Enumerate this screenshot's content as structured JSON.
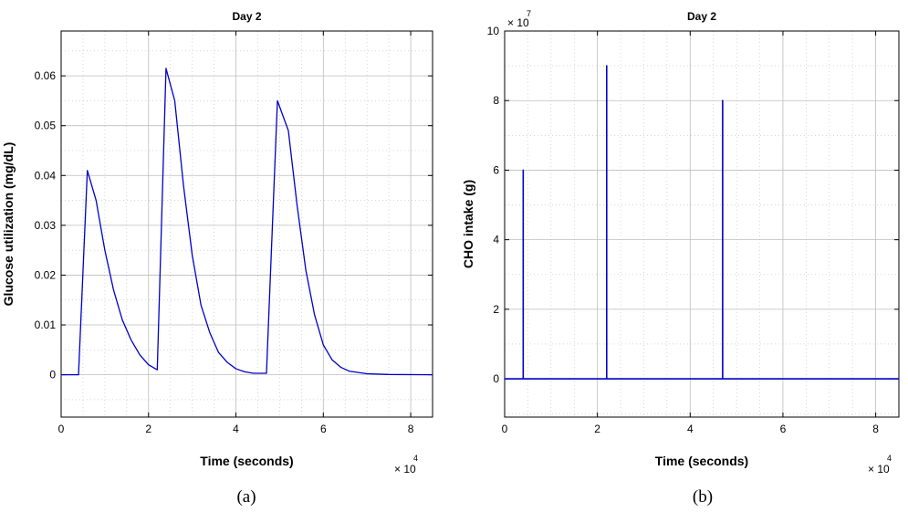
{
  "colors": {
    "series": "#0000c8",
    "grid": "#bdbdbd",
    "axes": "#000000"
  },
  "chart_data": [
    {
      "type": "line",
      "title": "Day 2",
      "xlabel": "Time (seconds)",
      "ylabel": "Glucose utilization (mg/dL)",
      "caption": "(a)",
      "x_multiplier": {
        "base": "× 10",
        "exponent": "4"
      },
      "xlim": [
        0,
        8.5
      ],
      "ylim": [
        -0.0085,
        0.069
      ],
      "xticks": [
        0,
        2,
        4,
        6,
        8
      ],
      "yticks": [
        0,
        0.01,
        0.02,
        0.03,
        0.04,
        0.05,
        0.06
      ],
      "ytick_labels": [
        "0",
        "0.01",
        "0.02",
        "0.03",
        "0.04",
        "0.05",
        "0.06"
      ],
      "grid": true,
      "series": [
        {
          "x": [
            0,
            0.4,
            0.4,
            0.6,
            0.8,
            1.0,
            1.2,
            1.4,
            1.6,
            1.8,
            2.0,
            2.2,
            2.2,
            2.4,
            2.6,
            2.8,
            3.0,
            3.2,
            3.4,
            3.6,
            3.8,
            4.0,
            4.2,
            4.4,
            4.7,
            4.7,
            4.95,
            5.2,
            5.4,
            5.6,
            5.8,
            6.0,
            6.2,
            6.4,
            6.6,
            7.0,
            7.5,
            8.5
          ],
          "y": [
            0,
            0,
            0.0005,
            0.041,
            0.035,
            0.025,
            0.017,
            0.011,
            0.007,
            0.004,
            0.002,
            0.001,
            0.001,
            0.0615,
            0.055,
            0.038,
            0.024,
            0.014,
            0.0085,
            0.0045,
            0.0025,
            0.0012,
            0.0006,
            0.0003,
            0.0003,
            0.0005,
            0.055,
            0.049,
            0.034,
            0.021,
            0.012,
            0.006,
            0.003,
            0.0015,
            0.0007,
            0.0002,
            5e-05,
            0
          ]
        }
      ]
    },
    {
      "type": "line",
      "title": "Day 2",
      "xlabel": "Time (seconds)",
      "ylabel": "CHO intake (g)",
      "caption": "(b)",
      "x_multiplier": {
        "base": "× 10",
        "exponent": "4"
      },
      "y_multiplier": {
        "base": "× 10",
        "exponent": "7"
      },
      "xlim": [
        0,
        8.5
      ],
      "ylim": [
        -1.1,
        10
      ],
      "xticks": [
        0,
        2,
        4,
        6,
        8
      ],
      "yticks": [
        0,
        2,
        4,
        6,
        8,
        10
      ],
      "ytick_labels": [
        "0",
        "2",
        "4",
        "6",
        "8",
        "10"
      ],
      "grid": true,
      "series": [
        {
          "x": [
            0,
            0.4,
            0.4,
            0.4,
            2.2,
            2.2,
            2.2,
            4.7,
            4.7,
            4.7,
            8.5
          ],
          "y": [
            0,
            0,
            6,
            0,
            0,
            9,
            0,
            0,
            8,
            0,
            0
          ]
        }
      ]
    }
  ]
}
